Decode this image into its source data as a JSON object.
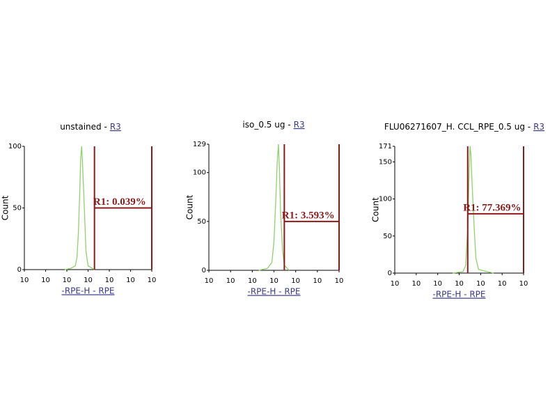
{
  "chart_data": [
    {
      "type": "histogram-line",
      "title": "unstained -",
      "title_link": "R3",
      "xlabel": "-RPE-H - RPE",
      "ylabel": "Count",
      "color": "#8fd16a",
      "xscale": "log",
      "xlim": [
        1,
        1000000
      ],
      "xticks": [
        {
          "value": 1,
          "label": "10"
        },
        10,
        {
          "value": 100,
          "label": "10"
        },
        {
          "value": 1000,
          "label": "10"
        },
        {
          "value": 10000,
          "label": "10"
        },
        {
          "value": 100000,
          "label": "10"
        },
        {
          "value": 1000000,
          "label": "10"
        }
      ],
      "ylim": [
        0,
        100
      ],
      "yticks": [
        0,
        50,
        100
      ],
      "x": [
        80,
        150,
        250,
        300,
        350,
        400,
        450,
        500,
        550,
        600,
        700,
        800,
        1000,
        2000
      ],
      "values": [
        0,
        1,
        3,
        10,
        30,
        60,
        90,
        100,
        85,
        70,
        40,
        15,
        3,
        0
      ],
      "region": {
        "label": "R1: 0.039%",
        "x": [
          2000,
          1000000
        ],
        "y": 50,
        "color": "#8b1a1a"
      }
    },
    {
      "type": "histogram-line",
      "title": "iso_0.5 ug -",
      "title_link": "R3",
      "xlabel": "-RPE-H - RPE",
      "ylabel": "Count",
      "color": "#8fd16a",
      "xscale": "log",
      "xlim": [
        1,
        1000000
      ],
      "xticks": [
        {
          "value": 1,
          "label": "10"
        },
        10,
        {
          "value": 100,
          "label": "10"
        },
        {
          "value": 1000,
          "label": "10"
        },
        {
          "value": 10000,
          "label": "10"
        },
        {
          "value": 100000,
          "label": "10"
        },
        {
          "value": 1000000,
          "label": "10"
        }
      ],
      "ylim": [
        0,
        129
      ],
      "yticks": [
        0,
        50,
        100,
        129
      ],
      "x": [
        200,
        500,
        800,
        1000,
        1200,
        1400,
        1600,
        1800,
        2000,
        2500,
        3000,
        5000
      ],
      "values": [
        0,
        2,
        8,
        30,
        70,
        110,
        129,
        100,
        60,
        20,
        5,
        0
      ],
      "region": {
        "label": "R1: 3.593%",
        "x": [
          3000,
          1000000
        ],
        "y": 50,
        "color": "#8b1a1a"
      }
    },
    {
      "type": "histogram-line",
      "title": "FLU06271607_H. CCL_RPE_0.5 ug -",
      "title_link": "R3",
      "xlabel": "-RPE-H - RPE",
      "ylabel": "Count",
      "color": "#8fd16a",
      "xscale": "log",
      "xlim": [
        1,
        1000000
      ],
      "xticks": [
        {
          "value": 1,
          "label": "10"
        },
        10,
        {
          "value": 100,
          "label": "10"
        },
        {
          "value": 1000,
          "label": "10"
        },
        {
          "value": 10000,
          "label": "10"
        },
        {
          "value": 100000,
          "label": "10"
        },
        {
          "value": 1000000,
          "label": "10"
        }
      ],
      "ylim": [
        0,
        171
      ],
      "yticks": [
        0,
        50,
        100,
        150,
        171
      ],
      "x": [
        500,
        1500,
        2000,
        2500,
        3000,
        3200,
        3500,
        4000,
        5000,
        6000,
        8000,
        20000,
        40000
      ],
      "values": [
        0,
        2,
        10,
        60,
        150,
        171,
        160,
        120,
        60,
        20,
        5,
        2,
        0
      ],
      "region": {
        "label": "R1: 77.369%",
        "x": [
          2500,
          1000000
        ],
        "y": 80,
        "color": "#8b1a1a"
      }
    }
  ]
}
